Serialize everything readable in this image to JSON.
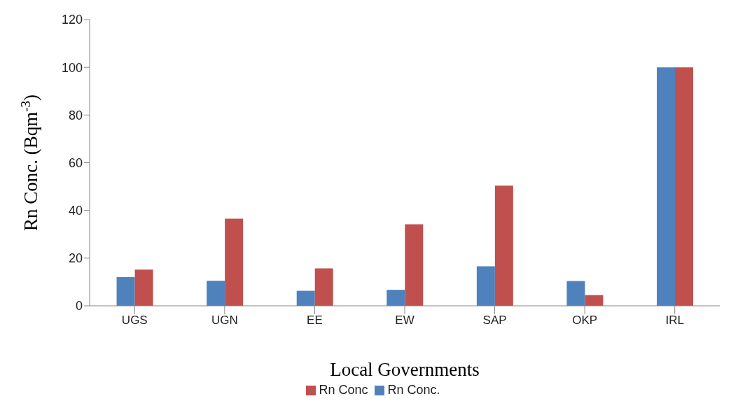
{
  "chart_data": {
    "type": "bar",
    "xlabel": "Local Governments",
    "ylabel": "Rn Conc. (Bqm$^{-3}$)",
    "categories": [
      "UGS",
      "UGN",
      "EE",
      "EW",
      "SAP",
      "OKP",
      "IRL"
    ],
    "series": [
      {
        "name": "Rn Conc.",
        "color": "#4f81bd",
        "values": [
          12,
          10.5,
          6.3,
          6.7,
          16.6,
          10.4,
          100
        ]
      },
      {
        "name": "Rn Conc",
        "color": "#c0504d",
        "values": [
          15.2,
          36.5,
          15.7,
          34.2,
          50.4,
          4.5,
          100
        ]
      }
    ],
    "ylim": [
      0,
      120
    ],
    "yticks": [
      0,
      20,
      40,
      60,
      80,
      100,
      120
    ],
    "legend": "bottom"
  }
}
